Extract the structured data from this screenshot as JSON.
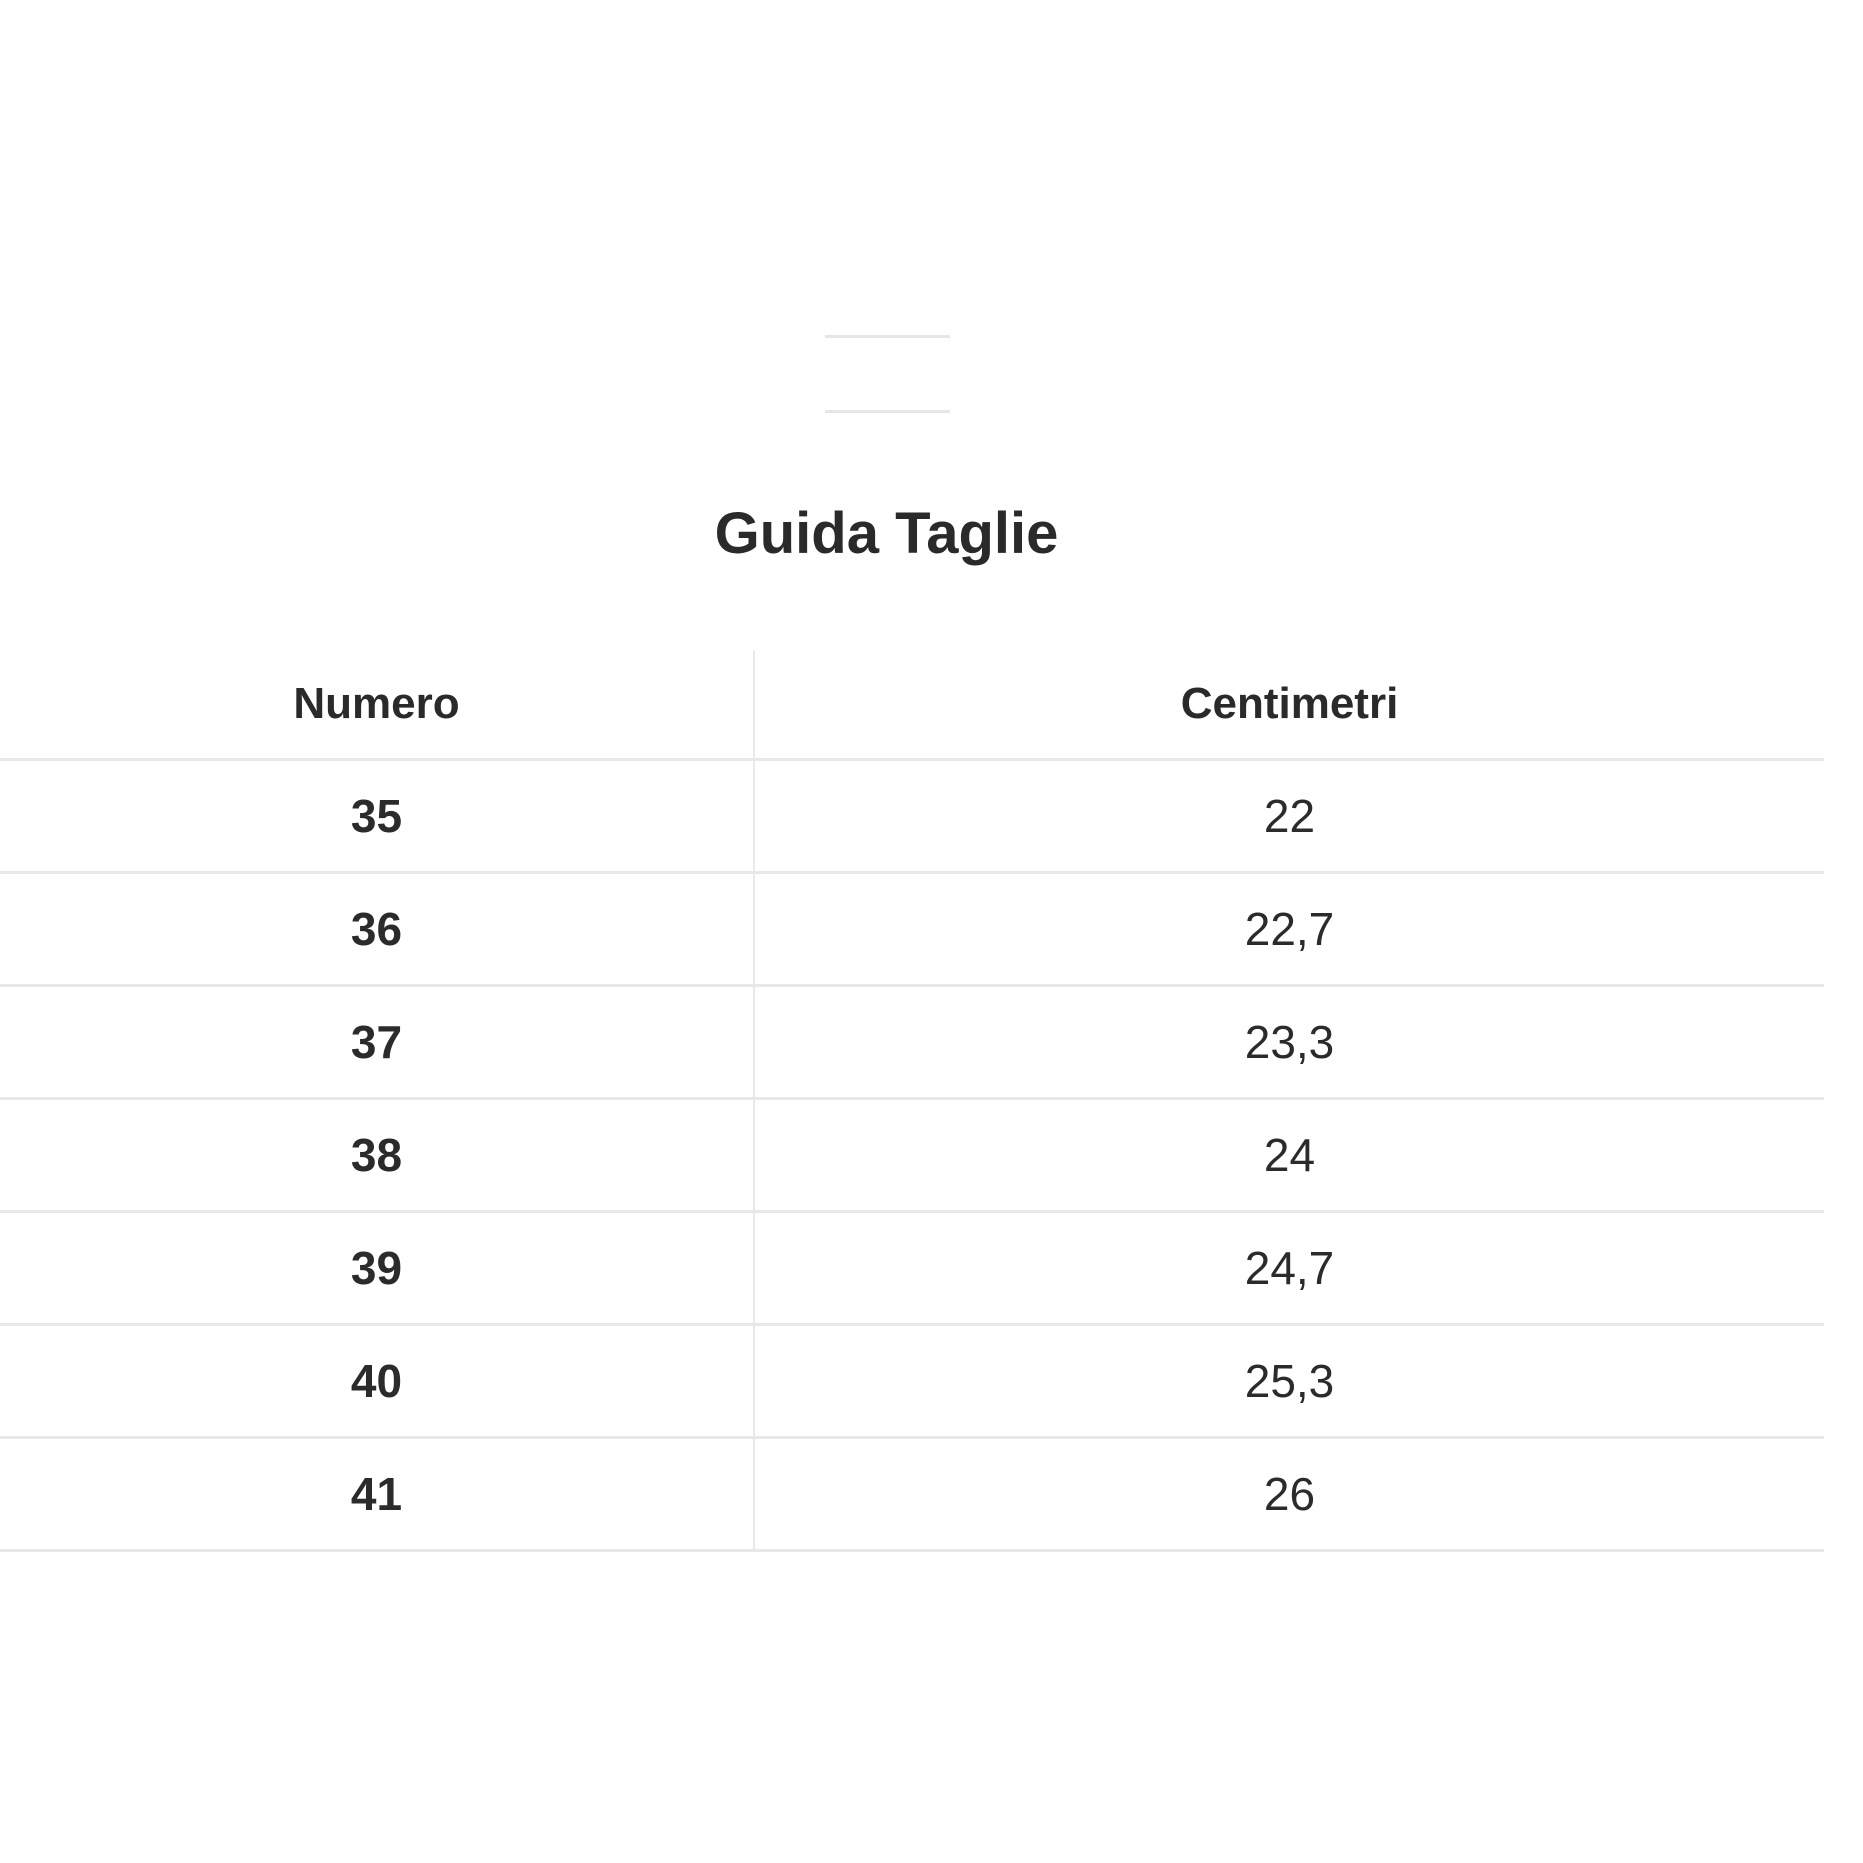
{
  "title": "Guida Taglie",
  "table": {
    "headers": [
      "Numero",
      "Centimetri"
    ],
    "rows": [
      [
        "35",
        "22"
      ],
      [
        "36",
        "22,7"
      ],
      [
        "37",
        "23,3"
      ],
      [
        "38",
        "24"
      ],
      [
        "39",
        "24,7"
      ],
      [
        "40",
        "25,3"
      ],
      [
        "41",
        "26"
      ]
    ]
  }
}
